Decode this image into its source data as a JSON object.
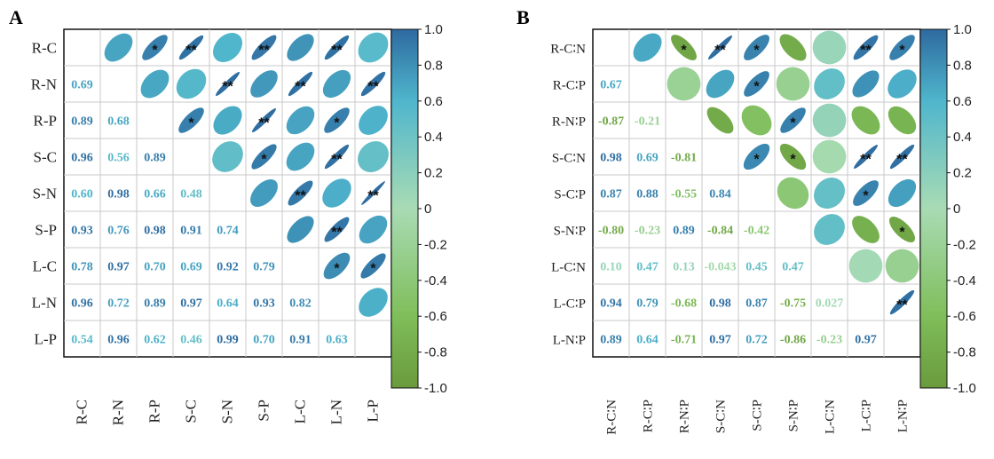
{
  "chart_data": [
    {
      "type": "heatmap",
      "panel_label": "A",
      "variables": [
        "R-C",
        "R-N",
        "R-P",
        "S-C",
        "S-N",
        "S-P",
        "L-C",
        "L-N",
        "L-P"
      ],
      "lower_triangle": [
        [],
        [
          "0.69"
        ],
        [
          "0.89",
          "0.68"
        ],
        [
          "0.96",
          "0.56",
          "0.89"
        ],
        [
          "0.60",
          "0.98",
          "0.66",
          "0.48"
        ],
        [
          "0.93",
          "0.76",
          "0.98",
          "0.91",
          "0.74"
        ],
        [
          "0.78",
          "0.97",
          "0.70",
          "0.69",
          "0.92",
          "0.79"
        ],
        [
          "0.96",
          "0.72",
          "0.89",
          "0.97",
          "0.64",
          "0.93",
          "0.82"
        ],
        [
          "0.54",
          "0.96",
          "0.62",
          "0.46",
          "0.99",
          "0.70",
          "0.91",
          "0.63"
        ]
      ],
      "upper_significance": [
        [
          "",
          "",
          "*",
          "**",
          "",
          "**",
          "",
          "**",
          ""
        ],
        [
          "",
          "",
          "",
          "",
          "**",
          "",
          "**",
          "",
          "**"
        ],
        [
          "",
          "",
          "",
          "*",
          "",
          "**",
          "",
          "*",
          ""
        ],
        [
          "",
          "",
          "",
          "",
          "",
          "*",
          "",
          "**",
          ""
        ],
        [
          "",
          "",
          "",
          "",
          "",
          "",
          "**",
          "",
          "**"
        ],
        [
          "",
          "",
          "",
          "",
          "",
          "",
          "",
          "**",
          ""
        ],
        [
          "",
          "",
          "",
          "",
          "",
          "",
          "",
          "*",
          "*"
        ],
        [
          "",
          "",
          "",
          "",
          "",
          "",
          "",
          "",
          ""
        ],
        [
          "",
          "",
          "",
          "",
          "",
          "",
          "",
          "",
          ""
        ]
      ],
      "colorbar": {
        "range": [
          -1.0,
          1.0
        ],
        "ticks": [
          "1.0",
          "0.8",
          "0.6",
          "0.4",
          "0.2",
          "0",
          "-0.2",
          "-0.4",
          "-0.6",
          "-0.8",
          "-1.0"
        ],
        "colors": [
          "#6a9a3c",
          "#7fbe5a",
          "#a8dbb4",
          "#4fb6cc",
          "#2e6aa0"
        ]
      }
    },
    {
      "type": "heatmap",
      "panel_label": "B",
      "variables": [
        "R-C∶N",
        "R-C∶P",
        "R-N∶P",
        "S-C∶N",
        "S-C∶P",
        "S-N∶P",
        "L-C∶N",
        "L-C∶P",
        "L-N∶P"
      ],
      "lower_triangle": [
        [],
        [
          "0.67"
        ],
        [
          "-0.87",
          "-0.21"
        ],
        [
          "0.98",
          "0.69",
          "-0.81"
        ],
        [
          "0.87",
          "0.88",
          "-0.55",
          "0.84"
        ],
        [
          "-0.80",
          "-0.23",
          "0.89",
          "-0.84",
          "-0.42"
        ],
        [
          "0.10",
          "0.47",
          "0.13",
          "-0.043",
          "0.45",
          "0.47"
        ],
        [
          "0.94",
          "0.79",
          "-0.68",
          "0.98",
          "0.87",
          "-0.75",
          "0.027"
        ],
        [
          "0.89",
          "0.64",
          "-0.71",
          "0.97",
          "0.72",
          "-0.86",
          "-0.23",
          "0.97"
        ]
      ],
      "upper_significance": [
        [
          "",
          "",
          "*",
          "**",
          "*",
          "",
          "",
          "**",
          "*"
        ],
        [
          "",
          "",
          "",
          "",
          "*",
          "",
          "",
          "",
          ""
        ],
        [
          "",
          "",
          "",
          "",
          "",
          "*",
          "",
          "",
          ""
        ],
        [
          "",
          "",
          "",
          "",
          "*",
          "*",
          "",
          "**",
          "**"
        ],
        [
          "",
          "",
          "",
          "",
          "",
          "",
          "",
          "*",
          ""
        ],
        [
          "",
          "",
          "",
          "",
          "",
          "",
          "",
          "",
          "*"
        ],
        [
          "",
          "",
          "",
          "",
          "",
          "",
          "",
          "",
          ""
        ],
        [
          "",
          "",
          "",
          "",
          "",
          "",
          "",
          "",
          "**"
        ],
        [
          "",
          "",
          "",
          "",
          "",
          "",
          "",
          "",
          ""
        ]
      ],
      "colorbar": {
        "range": [
          -1.0,
          1.0
        ],
        "ticks": [
          "1.0",
          "0.8",
          "0.6",
          "0.4",
          "0.2",
          "0",
          "-0.2",
          "-0.4",
          "-0.6",
          "-0.8",
          "-1.0"
        ],
        "colors": [
          "#6a9a3c",
          "#7fbe5a",
          "#a8dbb4",
          "#4fb6cc",
          "#2e6aa0"
        ]
      }
    }
  ]
}
